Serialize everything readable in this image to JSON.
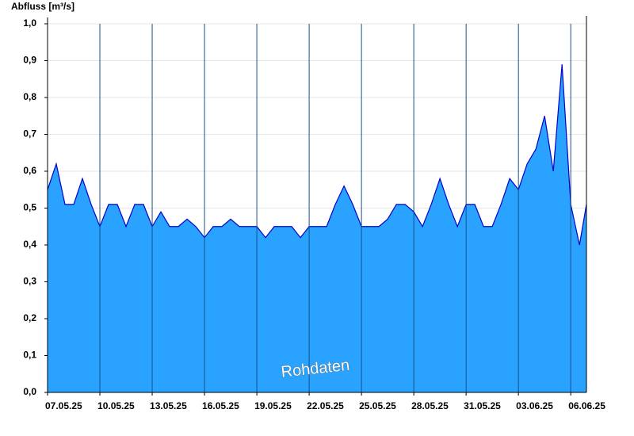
{
  "chart_data": {
    "type": "area",
    "title": "Abfluss [m³/s]",
    "annotation": "Rohdaten",
    "x": [
      0,
      0.5,
      1,
      1.5,
      2,
      2.5,
      3,
      3.5,
      4,
      4.5,
      5,
      5.5,
      6,
      6.5,
      7,
      7.5,
      8,
      8.5,
      9,
      9.5,
      10,
      10.5,
      11,
      11.5,
      12,
      12.5,
      13,
      13.5,
      14,
      14.5,
      15,
      15.5,
      16,
      16.5,
      17,
      17.5,
      18,
      18.5,
      19,
      19.5,
      20,
      20.5,
      21,
      21.5,
      22,
      22.5,
      23,
      23.5,
      24,
      24.5,
      25,
      25.5,
      26,
      26.5,
      27,
      27.5,
      28,
      28.5,
      29,
      29.5,
      30,
      30.5,
      30.9
    ],
    "values": [
      0.55,
      0.62,
      0.51,
      0.51,
      0.58,
      0.51,
      0.45,
      0.51,
      0.51,
      0.45,
      0.51,
      0.51,
      0.45,
      0.49,
      0.45,
      0.45,
      0.47,
      0.45,
      0.42,
      0.45,
      0.45,
      0.47,
      0.45,
      0.45,
      0.45,
      0.42,
      0.45,
      0.45,
      0.45,
      0.42,
      0.45,
      0.45,
      0.45,
      0.51,
      0.56,
      0.51,
      0.45,
      0.45,
      0.45,
      0.47,
      0.51,
      0.51,
      0.49,
      0.45,
      0.51,
      0.58,
      0.51,
      0.45,
      0.51,
      0.51,
      0.45,
      0.45,
      0.51,
      0.58,
      0.55,
      0.62,
      0.66,
      0.75,
      0.6,
      0.89,
      0.51,
      0.4,
      0.51
    ],
    "color": "#29a3ff",
    "line_color": "#0000cc",
    "xlim": [
      0,
      30.9
    ],
    "xticks": [
      {
        "value": 0,
        "label": "07.05.25"
      },
      {
        "value": 3,
        "label": "10.05.25"
      },
      {
        "value": 6,
        "label": "13.05.25"
      },
      {
        "value": 9,
        "label": "16.05.25"
      },
      {
        "value": 12,
        "label": "19.05.25"
      },
      {
        "value": 15,
        "label": "22.05.25"
      },
      {
        "value": 18,
        "label": "25.05.25"
      },
      {
        "value": 21,
        "label": "28.05.25"
      },
      {
        "value": 24,
        "label": "31.05.25"
      },
      {
        "value": 27,
        "label": "03.06.25"
      },
      {
        "value": 30,
        "label": "06.06.25"
      }
    ],
    "ylim": [
      0,
      1.0
    ],
    "yticks": [
      {
        "value": 0,
        "label": "0,0"
      },
      {
        "value": 0.1,
        "label": "0,1"
      },
      {
        "value": 0.2,
        "label": "0,2"
      },
      {
        "value": 0.3,
        "label": "0,3"
      },
      {
        "value": 0.4,
        "label": "0,4"
      },
      {
        "value": 0.5,
        "label": "0,5"
      },
      {
        "value": 0.6,
        "label": "0,6"
      },
      {
        "value": 0.7,
        "label": "0,7"
      },
      {
        "value": 0.8,
        "label": "0,8"
      },
      {
        "value": 0.9,
        "label": "0,9"
      },
      {
        "value": 1.0,
        "label": "1,0"
      }
    ],
    "grid": true
  }
}
